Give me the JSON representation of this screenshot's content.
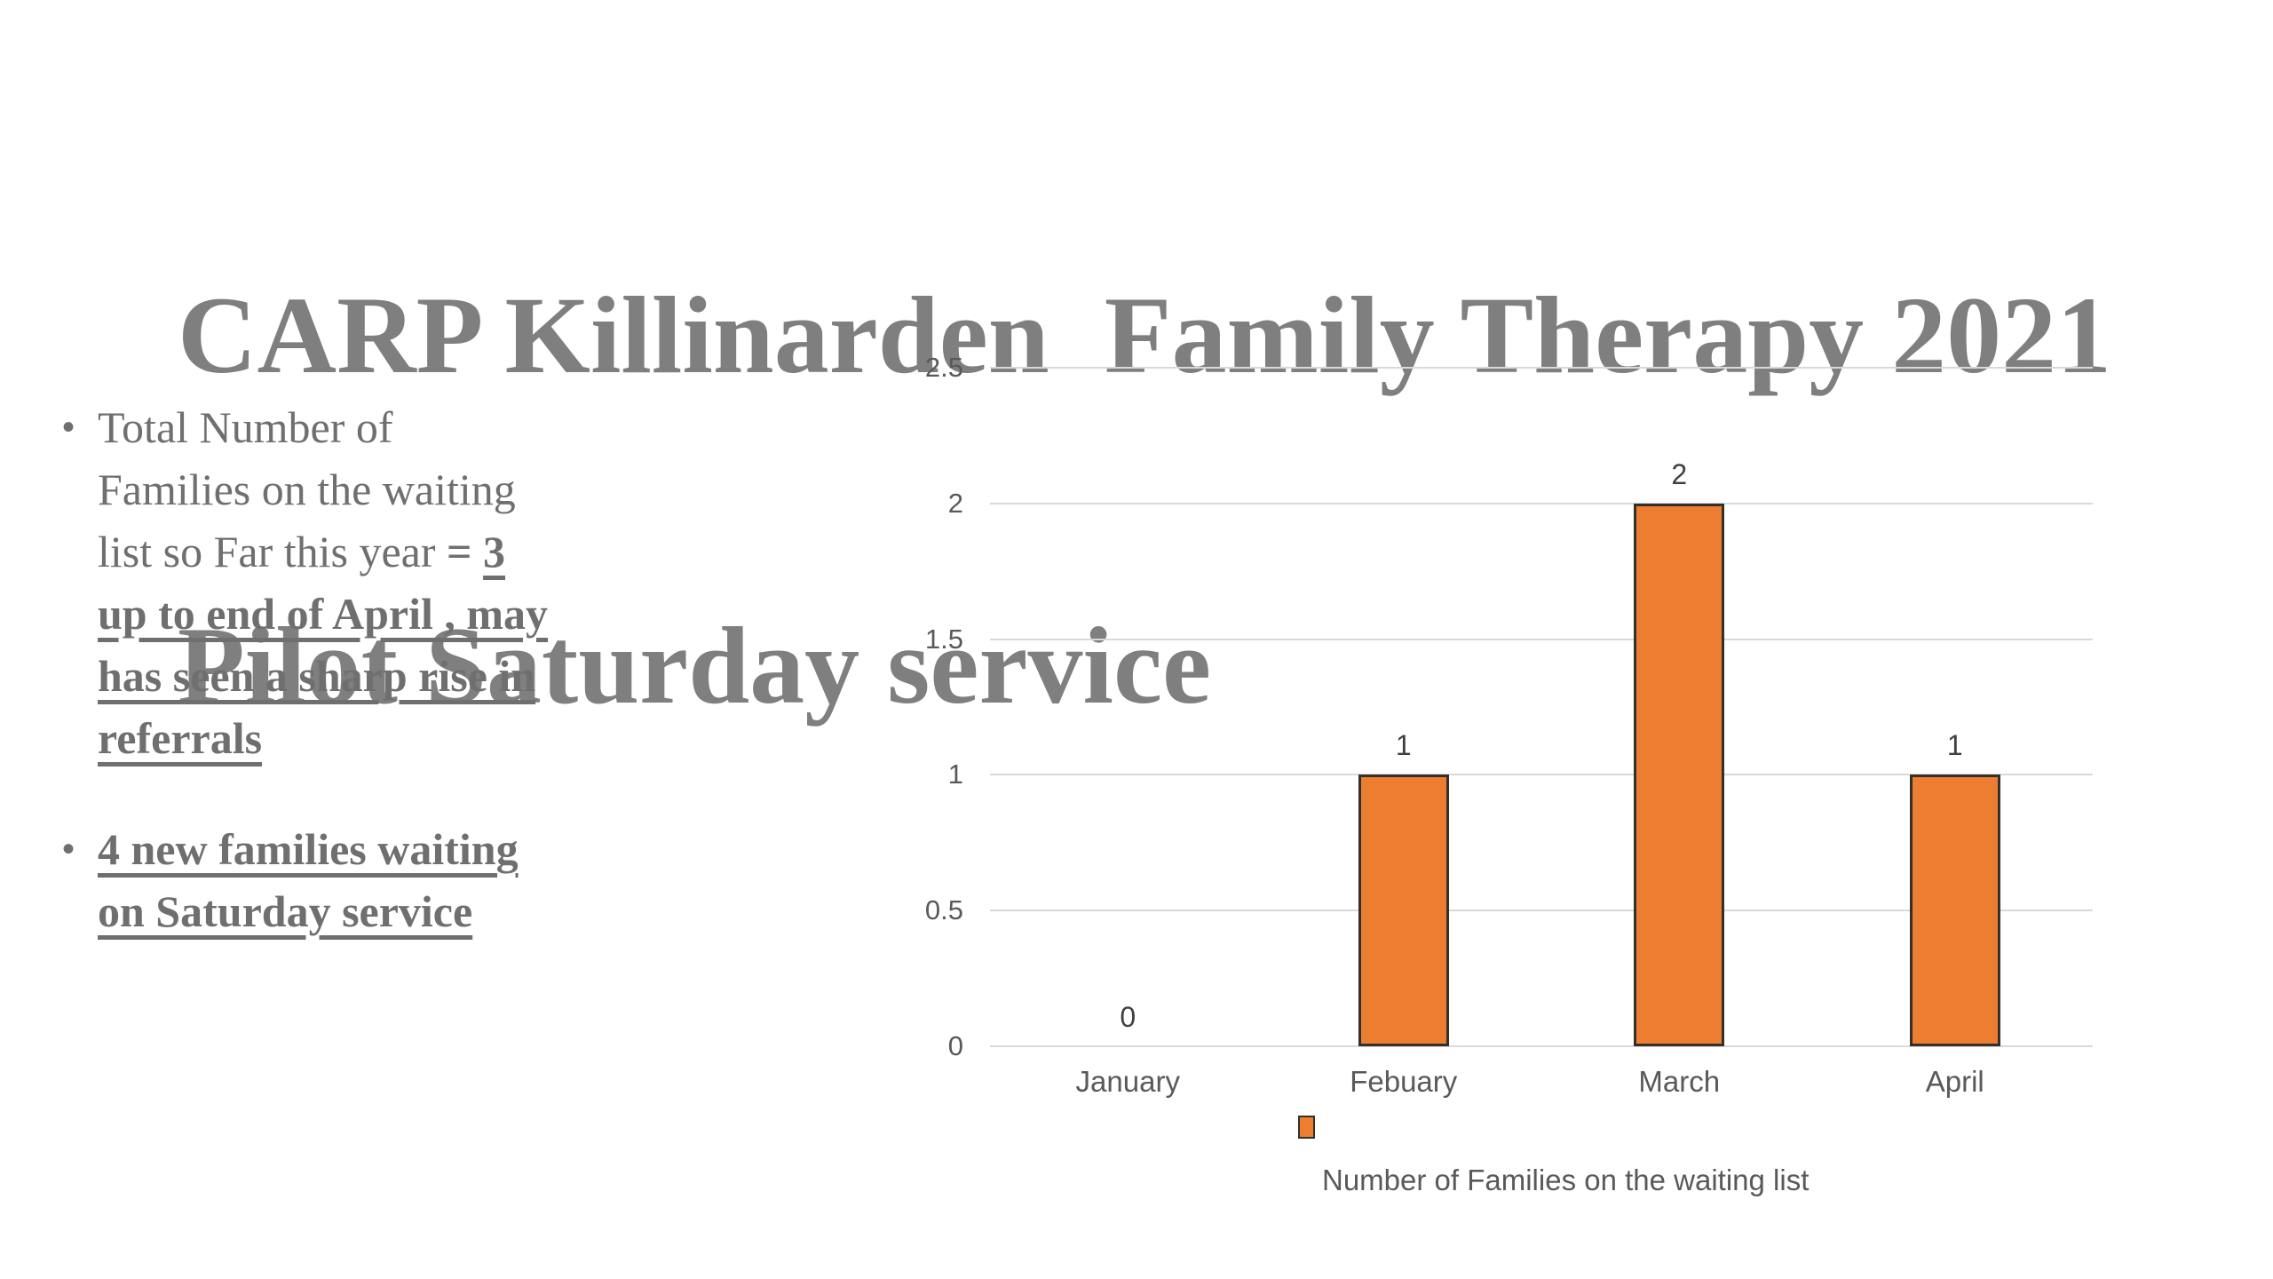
{
  "slide": {
    "title_line1": "CARP Killinarden  Family Therapy 2021",
    "title_line2": "Pilot Saturday service",
    "bullet_char": "•",
    "bullets": [
      {
        "segments": [
          {
            "text": "Total Number of Families on the waiting list so Far this year ",
            "style": "normal"
          },
          {
            "text": "= ",
            "style": "bold"
          },
          {
            "text": "3 up to end of April , may has seen a sharp rise in referrals",
            "style": "bold-underline"
          }
        ]
      },
      {
        "segments": [
          {
            "text": "4 new families waiting on Saturday service",
            "style": "bold-underline"
          }
        ]
      }
    ]
  },
  "chart_data": {
    "type": "bar",
    "title": "",
    "xlabel": "",
    "ylabel": "",
    "categories": [
      "January",
      "Febuary",
      "March",
      "April"
    ],
    "values": [
      0,
      1,
      2,
      1
    ],
    "data_labels": [
      "0",
      "1",
      "2",
      "1"
    ],
    "ylim": [
      0,
      2.5
    ],
    "yticks": [
      0,
      0.5,
      1,
      1.5,
      2,
      2.5
    ],
    "ytick_labels": [
      "0",
      "0.5",
      "1",
      "1.5",
      "2",
      "2.5"
    ],
    "grid": true,
    "legend": {
      "label": "Number of Families on the waiting list",
      "position": "bottom"
    },
    "colors": {
      "bar_fill": "#ED7D31",
      "bar_border": "#33302c",
      "gridline": "#d9d9d9",
      "axis_text": "#595959",
      "data_label_text": "#3f3f3f"
    }
  }
}
